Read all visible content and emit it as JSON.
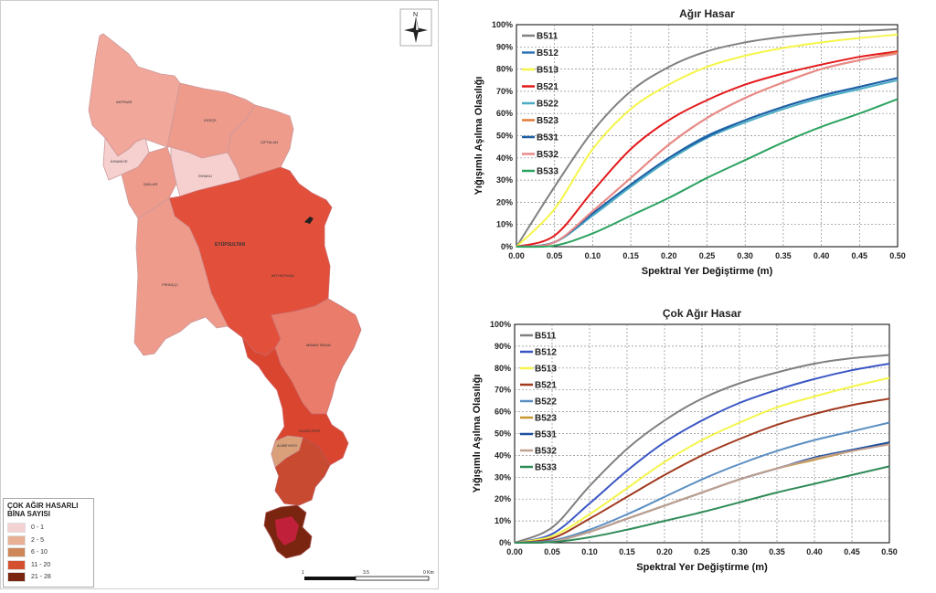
{
  "map": {
    "legend": {
      "title": "ÇOK AĞIR HASARLI\nBİNA SAYISI",
      "classes": [
        {
          "label": "0 - 1",
          "color": "#f5d2d2"
        },
        {
          "label": "2 - 5",
          "color": "#e8b094"
        },
        {
          "label": "6 - 10",
          "color": "#cd8758"
        },
        {
          "label": "11 - 20",
          "color": "#d4502e"
        },
        {
          "label": "21 - 28",
          "color": "#7a2510"
        }
      ]
    },
    "scale_labels": [
      "1",
      "3.5",
      "0 Km"
    ],
    "north_label": "N",
    "district_labels": [
      "AKPINAR",
      "KÜSÇE",
      "ÇİFTALAN",
      "İHSANİYE",
      "İŞIKLAR",
      "İSHAKLI",
      "EYÜPSULTAN",
      "MİTHATPAŞA",
      "PİRİNÇÇİ",
      "MİMAR SİNAN",
      "GÜZELTEPE",
      "ALİBEYKÖY"
    ]
  },
  "chart_data": [
    {
      "type": "line",
      "title": "Ağır Hasar",
      "xlabel": "Spektral Yer Değiştirme (m)",
      "ylabel": "Yığışımlı Aşılma Olasılığı",
      "xlim": [
        0,
        0.5
      ],
      "ylim": [
        0,
        100
      ],
      "x_ticks": [
        "0.00",
        "0.05",
        "0.10",
        "0.15",
        "0.20",
        "0.25",
        "0.30",
        "0.35",
        "0.40",
        "0.45",
        "0.50"
      ],
      "y_ticks": [
        "0%",
        "10%",
        "20%",
        "30%",
        "40%",
        "50%",
        "60%",
        "70%",
        "80%",
        "90%",
        "100%"
      ],
      "grid": true,
      "legend_position": "top-left",
      "x": [
        0,
        0.05,
        0.1,
        0.15,
        0.2,
        0.25,
        0.3,
        0.35,
        0.4,
        0.45,
        0.5
      ],
      "series": [
        {
          "name": "B511",
          "color": "#808080",
          "values": [
            0,
            27,
            52,
            70,
            81,
            88,
            92,
            94.5,
            96,
            97,
            98
          ]
        },
        {
          "name": "B512",
          "color": "#2e75b6",
          "values": [
            0,
            2,
            15,
            28,
            40,
            50,
            57,
            63,
            68,
            72,
            76
          ]
        },
        {
          "name": "B513",
          "color": "#f5f54a",
          "values": [
            0,
            17,
            44,
            62,
            73,
            81,
            86,
            89.5,
            92,
            94,
            95.5
          ]
        },
        {
          "name": "B521",
          "color": "#e41a1c",
          "values": [
            0,
            5,
            25,
            44,
            57,
            66,
            73,
            78,
            82,
            85.5,
            88
          ]
        },
        {
          "name": "B522",
          "color": "#4bacc6",
          "values": [
            0,
            2,
            14,
            27,
            39,
            49,
            56,
            62,
            67,
            71,
            75
          ]
        },
        {
          "name": "B523",
          "color": "#e07b39",
          "values": [
            0,
            2,
            16,
            31,
            46,
            58,
            67,
            74,
            80,
            84,
            87.5
          ]
        },
        {
          "name": "B531",
          "color": "#1f5fa5",
          "values": [
            0,
            2,
            15,
            28,
            40,
            49.5,
            57,
            63,
            68,
            72,
            76
          ]
        },
        {
          "name": "B532",
          "color": "#e88a8a",
          "values": [
            0,
            2,
            16,
            31,
            46,
            58,
            67,
            74,
            80,
            84,
            87
          ]
        },
        {
          "name": "B533",
          "color": "#2ca25f",
          "values": [
            0,
            0.5,
            6,
            14,
            22,
            31,
            39,
            47,
            54,
            60,
            66.5
          ]
        }
      ]
    },
    {
      "type": "line",
      "title": "Çok Ağır Hasar",
      "xlabel": "Spektral Yer Değiştirme (m)",
      "ylabel": "Yığışımlı Aşılma Olasılığı",
      "xlim": [
        0,
        0.5
      ],
      "ylim": [
        0,
        100
      ],
      "x_ticks": [
        "0.00",
        "0.05",
        "0.10",
        "0.15",
        "0.20",
        "0.25",
        "0.30",
        "0.35",
        "0.40",
        "0.45",
        "0.50"
      ],
      "y_ticks": [
        "0%",
        "10%",
        "20%",
        "30%",
        "40%",
        "50%",
        "60%",
        "70%",
        "80%",
        "90%",
        "100%"
      ],
      "grid": true,
      "legend_position": "top-left",
      "x": [
        0,
        0.05,
        0.1,
        0.15,
        0.2,
        0.25,
        0.3,
        0.35,
        0.4,
        0.45,
        0.5
      ],
      "series": [
        {
          "name": "B511",
          "color": "#808080",
          "values": [
            0,
            7,
            26,
            43,
            56,
            66,
            73,
            78,
            82,
            84.5,
            86
          ]
        },
        {
          "name": "B512",
          "color": "#3a56c4",
          "values": [
            0,
            4,
            18,
            33,
            46,
            56,
            64,
            70,
            75,
            79,
            82
          ]
        },
        {
          "name": "B513",
          "color": "#f5f54a",
          "values": [
            0,
            3,
            13,
            25,
            37,
            47,
            55,
            62,
            67,
            71.5,
            75.5
          ]
        },
        {
          "name": "B521",
          "color": "#a0391e",
          "values": [
            0,
            2,
            11,
            21,
            31,
            40,
            47.5,
            54,
            59,
            63,
            66
          ]
        },
        {
          "name": "B522",
          "color": "#5b8ec2",
          "values": [
            0,
            1,
            6,
            13,
            21,
            29,
            36,
            42,
            47,
            51,
            55
          ]
        },
        {
          "name": "B523",
          "color": "#c8962e",
          "values": [
            0,
            0.5,
            5,
            11,
            17,
            23,
            29,
            34,
            38,
            42,
            45.5
          ]
        },
        {
          "name": "B531",
          "color": "#1e4fa0",
          "values": [
            0,
            0.5,
            5,
            11,
            17,
            23,
            29,
            34,
            39,
            42.5,
            46
          ]
        },
        {
          "name": "B532",
          "color": "#c0a090",
          "values": [
            0,
            0.5,
            5,
            11,
            17,
            23,
            29,
            34,
            38.5,
            42,
            45
          ]
        },
        {
          "name": "B533",
          "color": "#2e8b57",
          "values": [
            0,
            0.3,
            2.5,
            6,
            10,
            14,
            18.5,
            23,
            27,
            31,
            35
          ]
        }
      ]
    }
  ]
}
